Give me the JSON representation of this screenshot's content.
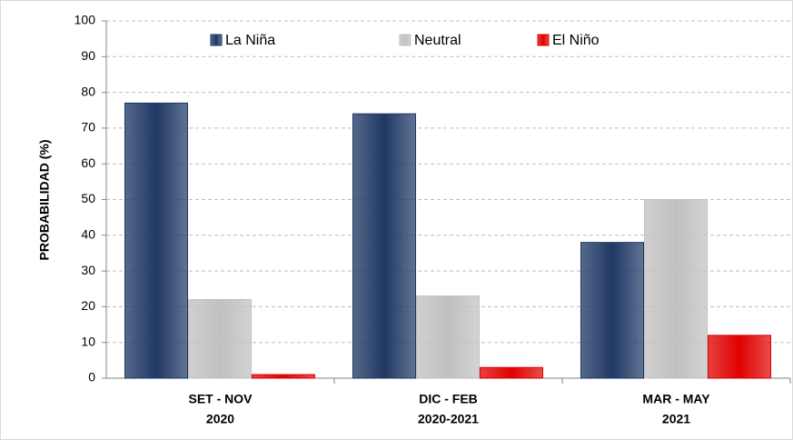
{
  "chart_data": {
    "type": "bar",
    "y_label": "PROBABILIDAD (%)",
    "categories": [
      [
        "SET - NOV",
        "2020"
      ],
      [
        "DIC - FEB",
        "2020-2021"
      ],
      [
        "MAR - MAY",
        "2021"
      ]
    ],
    "series": [
      {
        "name": "La Niña",
        "color": "#1f3864",
        "values": [
          77,
          74,
          38
        ]
      },
      {
        "name": "Neutral",
        "color": "#c0c0c0",
        "values": [
          22,
          23,
          50
        ]
      },
      {
        "name": "El Niño",
        "color": "#e00000",
        "values": [
          1,
          3,
          12
        ]
      }
    ],
    "ylim": [
      0,
      100
    ],
    "yticks": [
      0,
      10,
      20,
      30,
      40,
      50,
      60,
      70,
      80,
      90,
      100
    ],
    "grid": true,
    "legend": "top"
  }
}
